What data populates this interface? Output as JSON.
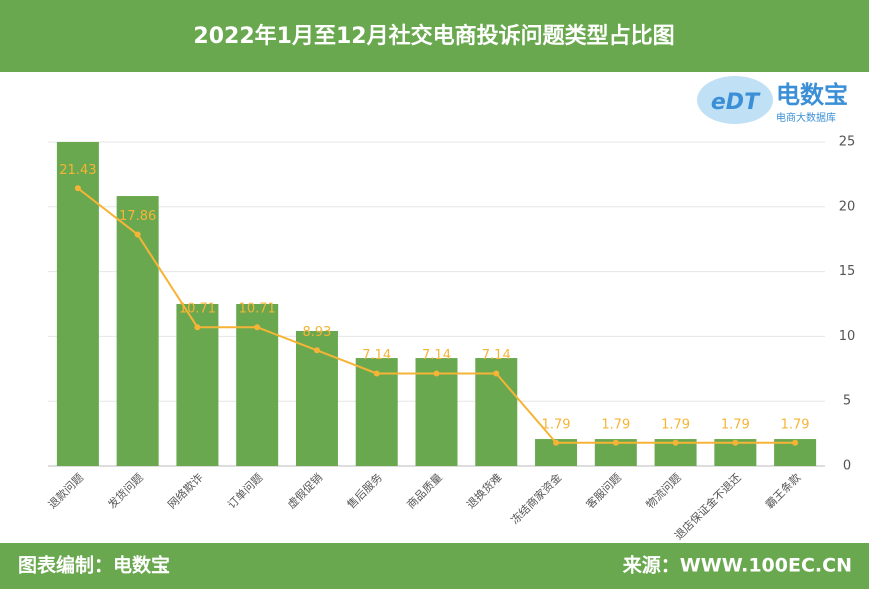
{
  "chart_data": {
    "type": "bar",
    "title": "2022年1月至12月社交电商投诉问题类型占比图",
    "categories": [
      "退款问题",
      "发货问题",
      "网络欺诈",
      "订单问题",
      "虚假促销",
      "售后服务",
      "商品质量",
      "退换货难",
      "冻结商家资金",
      "客服问题",
      "物流问题",
      "退店保证金不退还",
      "霸王条款"
    ],
    "series": [
      {
        "type": "bar",
        "color": "#6aa84f",
        "values": [
          25,
          20.83,
          12.5,
          12.5,
          10.42,
          8.33,
          8.33,
          8.33,
          2.08,
          2.08,
          2.08,
          2.08,
          2.08
        ]
      },
      {
        "type": "line",
        "color": "#f6b437",
        "values": [
          21.43,
          17.86,
          10.71,
          10.71,
          8.93,
          7.14,
          7.14,
          7.14,
          1.79,
          1.79,
          1.79,
          1.79,
          1.79
        ]
      }
    ],
    "ylim": [
      0,
      25
    ],
    "yticks": [
      0,
      5,
      10,
      15,
      20,
      25
    ],
    "grid": true
  },
  "logo": {
    "mark": "eDT",
    "name": "电数宝",
    "tagline": "电商大数据库"
  },
  "footer": {
    "left": "图表编制：电数宝",
    "right": "来源：WWW.100EC.CN"
  }
}
